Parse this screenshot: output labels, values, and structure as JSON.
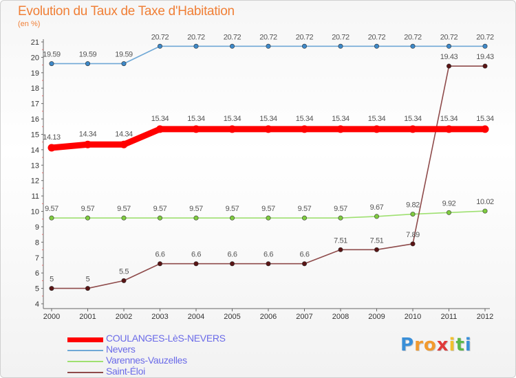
{
  "chart_data": {
    "type": "line",
    "title": "Evolution du Taux de Taxe d'Habitation",
    "subtitle": "(en %)",
    "x": [
      "2000",
      "2001",
      "2002",
      "2003",
      "2004",
      "2005",
      "2006",
      "2007",
      "2008",
      "2009",
      "2010",
      "2011",
      "2012"
    ],
    "ylim": [
      4,
      21
    ],
    "yticks": [
      4,
      5,
      6,
      7,
      8,
      9,
      10,
      11,
      12,
      13,
      14,
      15,
      16,
      17,
      18,
      19,
      20,
      21
    ],
    "grid": false,
    "legend_position": "bottom-left",
    "series": [
      {
        "name": "COULANGES-LèS-NEVERS",
        "color": "#ff0000",
        "dot_color": "#ff0000",
        "label_color": "#555555",
        "values": [
          14.13,
          14.34,
          14.34,
          15.34,
          15.34,
          15.34,
          15.34,
          15.34,
          15.34,
          15.34,
          15.34,
          15.34,
          15.34
        ],
        "labels": [
          "14.13",
          "14.34",
          "14.34",
          "15.34",
          "15.34",
          "15.34",
          "15.34",
          "15.34",
          "15.34",
          "15.34",
          "15.34",
          "15.34",
          "15.34"
        ]
      },
      {
        "name": "Nevers",
        "color": "#6fa8d6",
        "dot_color": "#3d88c8",
        "label_color": "#555555",
        "values": [
          19.59,
          19.59,
          19.59,
          20.72,
          20.72,
          20.72,
          20.72,
          20.72,
          20.72,
          20.72,
          20.72,
          20.72,
          20.72
        ],
        "labels": [
          "19.59",
          "19.59",
          "19.59",
          "20.72",
          "20.72",
          "20.72",
          "20.72",
          "20.72",
          "20.72",
          "20.72",
          "20.72",
          "20.72",
          "20.72"
        ]
      },
      {
        "name": "Varennes-Vauzelles",
        "color": "#9ee070",
        "dot_color": "#7fcc3f",
        "label_color": "#555555",
        "values": [
          9.57,
          9.57,
          9.57,
          9.57,
          9.57,
          9.57,
          9.57,
          9.57,
          9.57,
          9.67,
          9.82,
          9.92,
          10.02
        ],
        "labels": [
          "9.57",
          "9.57",
          "9.57",
          "9.57",
          "9.57",
          "9.57",
          "9.57",
          "9.57",
          "9.57",
          "9.67",
          "9.82",
          "9.92",
          "10.02"
        ]
      },
      {
        "name": "Saint-Éloi",
        "color": "#8e4a4a",
        "dot_color": "#5a1414",
        "label_color": "#555555",
        "values": [
          5,
          5,
          5.5,
          6.6,
          6.6,
          6.6,
          6.6,
          6.6,
          7.51,
          7.51,
          7.89,
          19.43,
          19.43
        ],
        "labels": [
          "5",
          "5",
          "5.5",
          "6.6",
          "6.6",
          "6.6",
          "6.6",
          "6.6",
          "7.51",
          "7.51",
          "7.89",
          "19.43",
          "19.43"
        ]
      }
    ]
  },
  "logo": {
    "letters": [
      "P",
      "r",
      "o",
      "x",
      "i",
      "t",
      "i"
    ],
    "colors": [
      "#3a8fd8",
      "#f29a2e",
      "#f29a2e",
      "#e03a3a",
      "#f2c02e",
      "#5db84a",
      "#3a8fd8"
    ]
  }
}
